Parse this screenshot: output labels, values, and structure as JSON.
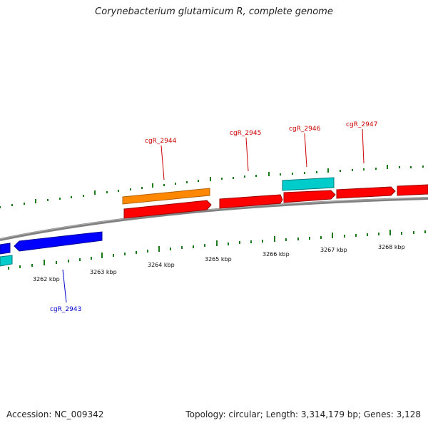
{
  "title": "Corynebacterium glutamicum R, complete genome",
  "footer": {
    "accession": "Accession: NC_009342",
    "summary": "Topology: circular; Length: 3,314,179 bp; Genes: 3,128"
  },
  "colors": {
    "backbone": "#808080",
    "tick": "#1a7a1a",
    "forward_gene": "#ff0000",
    "reverse_gene": "#0000ff",
    "cyan_gene": "#00cccc",
    "orange_gene": "#ff8800",
    "forward_label": "#cc0000",
    "reverse_label": "#0000cc"
  },
  "scale_labels": [
    "3262 kbp",
    "3263 kbp",
    "3264 kbp",
    "3265 kbp",
    "3266 kbp",
    "3267 kbp",
    "3268 kbp"
  ],
  "gene_labels": [
    {
      "name": "cgR_2943",
      "strand": "reverse"
    },
    {
      "name": "cgR_2944",
      "strand": "forward"
    },
    {
      "name": "cgR_2945",
      "strand": "forward"
    },
    {
      "name": "cgR_2946",
      "strand": "forward"
    },
    {
      "name": "cgR_2947",
      "strand": "forward"
    }
  ]
}
